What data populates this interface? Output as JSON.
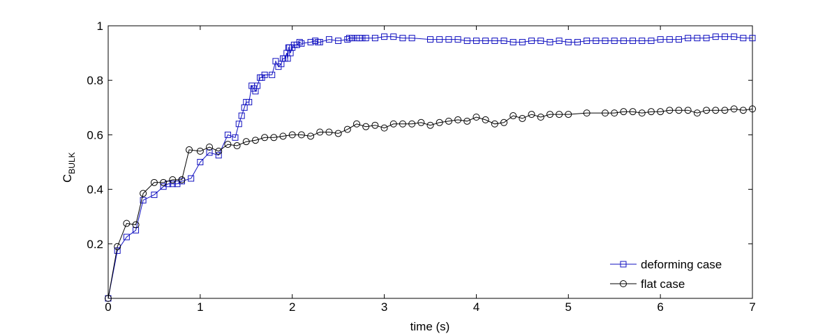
{
  "chart_data": {
    "type": "line",
    "xlabel": "time (s)",
    "ylabel_main": "C",
    "ylabel_sub": "BULK",
    "xlim": [
      0,
      7
    ],
    "ylim": [
      0,
      1
    ],
    "x_ticks": [
      0,
      1,
      2,
      3,
      4,
      5,
      6,
      7
    ],
    "y_ticks": [
      0.2,
      0.4,
      0.6,
      0.8,
      1
    ],
    "x_tick_labels": [
      "0",
      "1",
      "2",
      "3",
      "4",
      "5",
      "6",
      "7"
    ],
    "y_tick_labels": [
      "0.2",
      "0.4",
      "0.6",
      "0.8",
      "1"
    ],
    "grid": false,
    "legend_position": "bottom-right",
    "series": [
      {
        "name": "deforming case",
        "color": "#1010c0",
        "marker": "square",
        "x": [
          0,
          0.1,
          0.2,
          0.3,
          0.38,
          0.5,
          0.6,
          0.65,
          0.7,
          0.75,
          0.8,
          0.9,
          1.0,
          1.1,
          1.2,
          1.3,
          1.38,
          1.42,
          1.45,
          1.48,
          1.5,
          1.53,
          1.56,
          1.58,
          1.6,
          1.62,
          1.65,
          1.67,
          1.7,
          1.78,
          1.82,
          1.85,
          1.88,
          1.9,
          1.92,
          1.94,
          1.95,
          1.96,
          1.97,
          1.98,
          2.0,
          2.02,
          2.05,
          2.08,
          2.1,
          2.2,
          2.25,
          2.28,
          2.3,
          2.4,
          2.5,
          2.6,
          2.62,
          2.65,
          2.7,
          2.73,
          2.76,
          2.8,
          2.9,
          3.0,
          3.1,
          3.2,
          3.3,
          3.5,
          3.6,
          3.7,
          3.8,
          3.9,
          4.0,
          4.1,
          4.2,
          4.3,
          4.4,
          4.5,
          4.6,
          4.7,
          4.8,
          4.9,
          5.0,
          5.1,
          5.2,
          5.3,
          5.4,
          5.5,
          5.6,
          5.7,
          5.8,
          5.9,
          6.0,
          6.1,
          6.2,
          6.3,
          6.4,
          6.5,
          6.6,
          6.7,
          6.8,
          6.9,
          7.0
        ],
        "values": [
          0.0,
          0.175,
          0.225,
          0.25,
          0.36,
          0.38,
          0.41,
          0.42,
          0.42,
          0.42,
          0.43,
          0.44,
          0.5,
          0.535,
          0.525,
          0.6,
          0.59,
          0.64,
          0.67,
          0.7,
          0.72,
          0.72,
          0.78,
          0.77,
          0.76,
          0.78,
          0.81,
          0.81,
          0.82,
          0.82,
          0.87,
          0.85,
          0.86,
          0.88,
          0.88,
          0.9,
          0.88,
          0.92,
          0.92,
          0.9,
          0.92,
          0.93,
          0.93,
          0.94,
          0.935,
          0.94,
          0.945,
          0.94,
          0.94,
          0.95,
          0.945,
          0.95,
          0.955,
          0.955,
          0.955,
          0.955,
          0.955,
          0.955,
          0.955,
          0.96,
          0.96,
          0.955,
          0.955,
          0.95,
          0.95,
          0.95,
          0.95,
          0.945,
          0.945,
          0.945,
          0.945,
          0.945,
          0.94,
          0.94,
          0.945,
          0.945,
          0.94,
          0.945,
          0.94,
          0.94,
          0.945,
          0.945,
          0.945,
          0.945,
          0.945,
          0.945,
          0.945,
          0.945,
          0.95,
          0.95,
          0.95,
          0.955,
          0.955,
          0.955,
          0.96,
          0.96,
          0.96,
          0.955,
          0.955
        ]
      },
      {
        "name": "flat case",
        "color": "#000000",
        "marker": "circle",
        "x": [
          0,
          0.1,
          0.2,
          0.3,
          0.38,
          0.5,
          0.6,
          0.7,
          0.8,
          0.88,
          1.0,
          1.1,
          1.2,
          1.3,
          1.4,
          1.5,
          1.6,
          1.7,
          1.8,
          1.9,
          2.0,
          2.1,
          2.2,
          2.3,
          2.4,
          2.5,
          2.6,
          2.7,
          2.8,
          2.9,
          3.0,
          3.1,
          3.2,
          3.3,
          3.4,
          3.5,
          3.6,
          3.7,
          3.8,
          3.9,
          4.0,
          4.1,
          4.2,
          4.3,
          4.4,
          4.5,
          4.6,
          4.7,
          4.8,
          4.9,
          5.0,
          5.2,
          5.4,
          5.5,
          5.6,
          5.7,
          5.8,
          5.9,
          6.0,
          6.1,
          6.2,
          6.3,
          6.4,
          6.5,
          6.6,
          6.7,
          6.8,
          6.9,
          7.0
        ],
        "values": [
          0.0,
          0.19,
          0.275,
          0.27,
          0.385,
          0.425,
          0.425,
          0.435,
          0.435,
          0.545,
          0.54,
          0.555,
          0.54,
          0.565,
          0.56,
          0.575,
          0.58,
          0.59,
          0.59,
          0.595,
          0.6,
          0.6,
          0.595,
          0.61,
          0.61,
          0.605,
          0.62,
          0.64,
          0.63,
          0.635,
          0.625,
          0.64,
          0.64,
          0.64,
          0.645,
          0.635,
          0.645,
          0.65,
          0.655,
          0.65,
          0.665,
          0.655,
          0.64,
          0.645,
          0.67,
          0.66,
          0.675,
          0.665,
          0.675,
          0.675,
          0.675,
          0.68,
          0.68,
          0.68,
          0.685,
          0.685,
          0.68,
          0.685,
          0.685,
          0.69,
          0.69,
          0.69,
          0.68,
          0.69,
          0.69,
          0.69,
          0.695,
          0.69,
          0.695
        ]
      }
    ]
  }
}
